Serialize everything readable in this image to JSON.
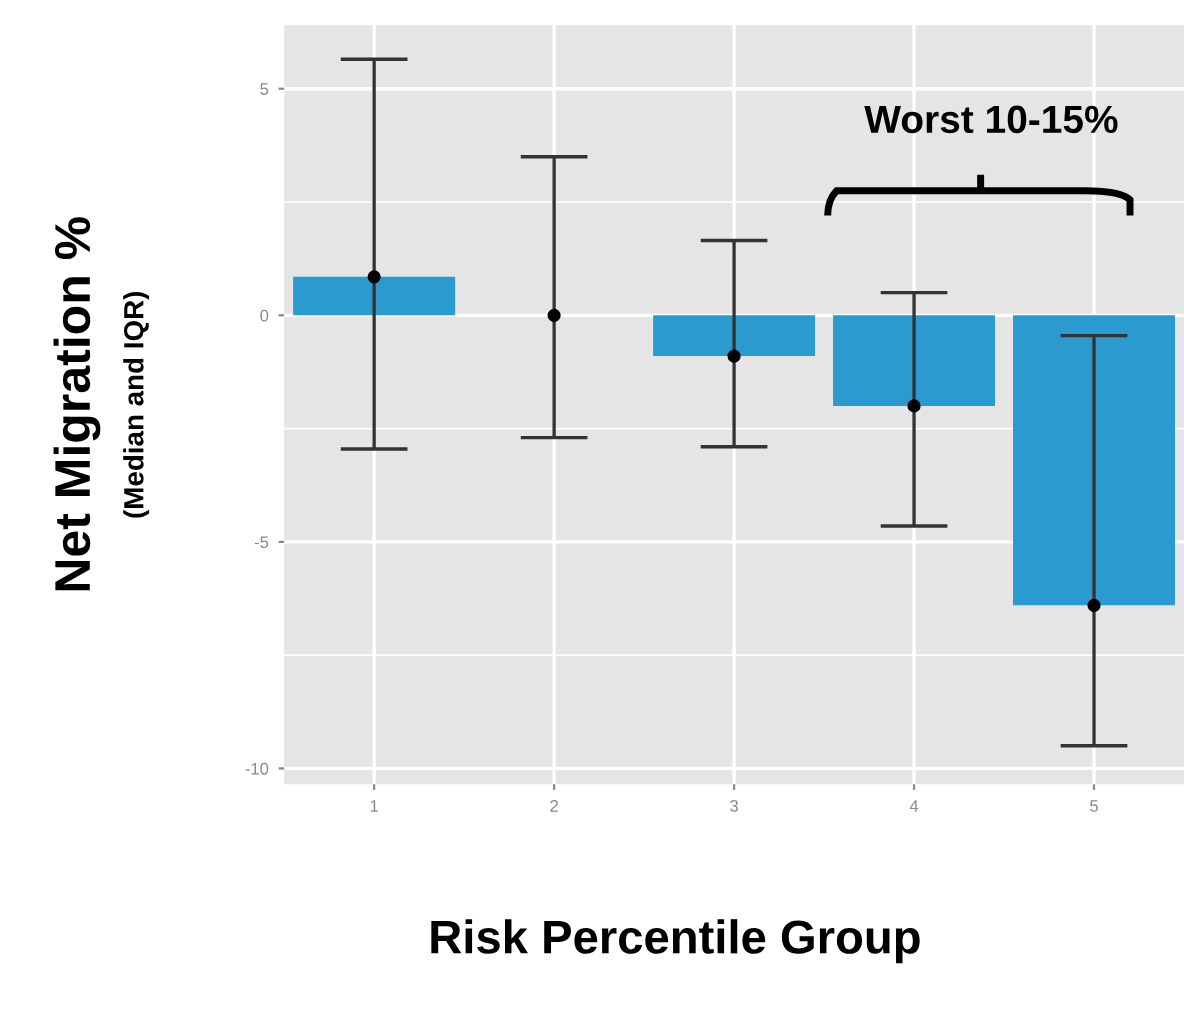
{
  "chart_data": {
    "type": "bar",
    "categories": [
      "1",
      "2",
      "3",
      "4",
      "5"
    ],
    "values": [
      0.85,
      0,
      -0.9,
      -2.0,
      -6.4
    ],
    "errors": [
      [
        -2.95,
        5.65
      ],
      [
        -2.7,
        3.5
      ],
      [
        -2.9,
        1.65
      ],
      [
        -4.65,
        0.5
      ],
      [
        -9.5,
        -0.45
      ]
    ],
    "color": "#2b9bcf",
    "series": [
      {
        "type": "scatter",
        "x": [
          "1",
          "2",
          "3",
          "4",
          "5"
        ],
        "values": [
          0.85,
          0,
          -0.9,
          -2.0,
          -6.4
        ],
        "color": "#000000",
        "marker": "circle"
      }
    ],
    "ylim": [
      -10.35,
      6.4
    ],
    "yticks": [
      5,
      0,
      -5,
      -10
    ],
    "grid": true,
    "xlabel": "Risk Percentile Group",
    "ylabel": "Net Migration %\n(Median and IQR)",
    "annotations": [
      "Worst 10-15%"
    ]
  }
}
